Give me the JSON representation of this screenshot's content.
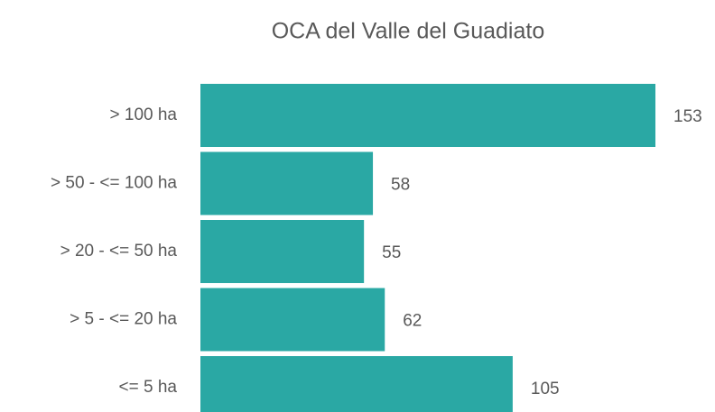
{
  "chart_data": {
    "type": "bar",
    "orientation": "horizontal",
    "title": "OCA del Valle del Guadiato",
    "categories": [
      "> 100 ha",
      "> 50 - <= 100 ha",
      "> 20 - <= 50 ha",
      "> 5 - <= 20 ha",
      "<= 5 ha"
    ],
    "values": [
      153,
      58,
      55,
      62,
      105
    ],
    "color": "#2aa8a4"
  }
}
